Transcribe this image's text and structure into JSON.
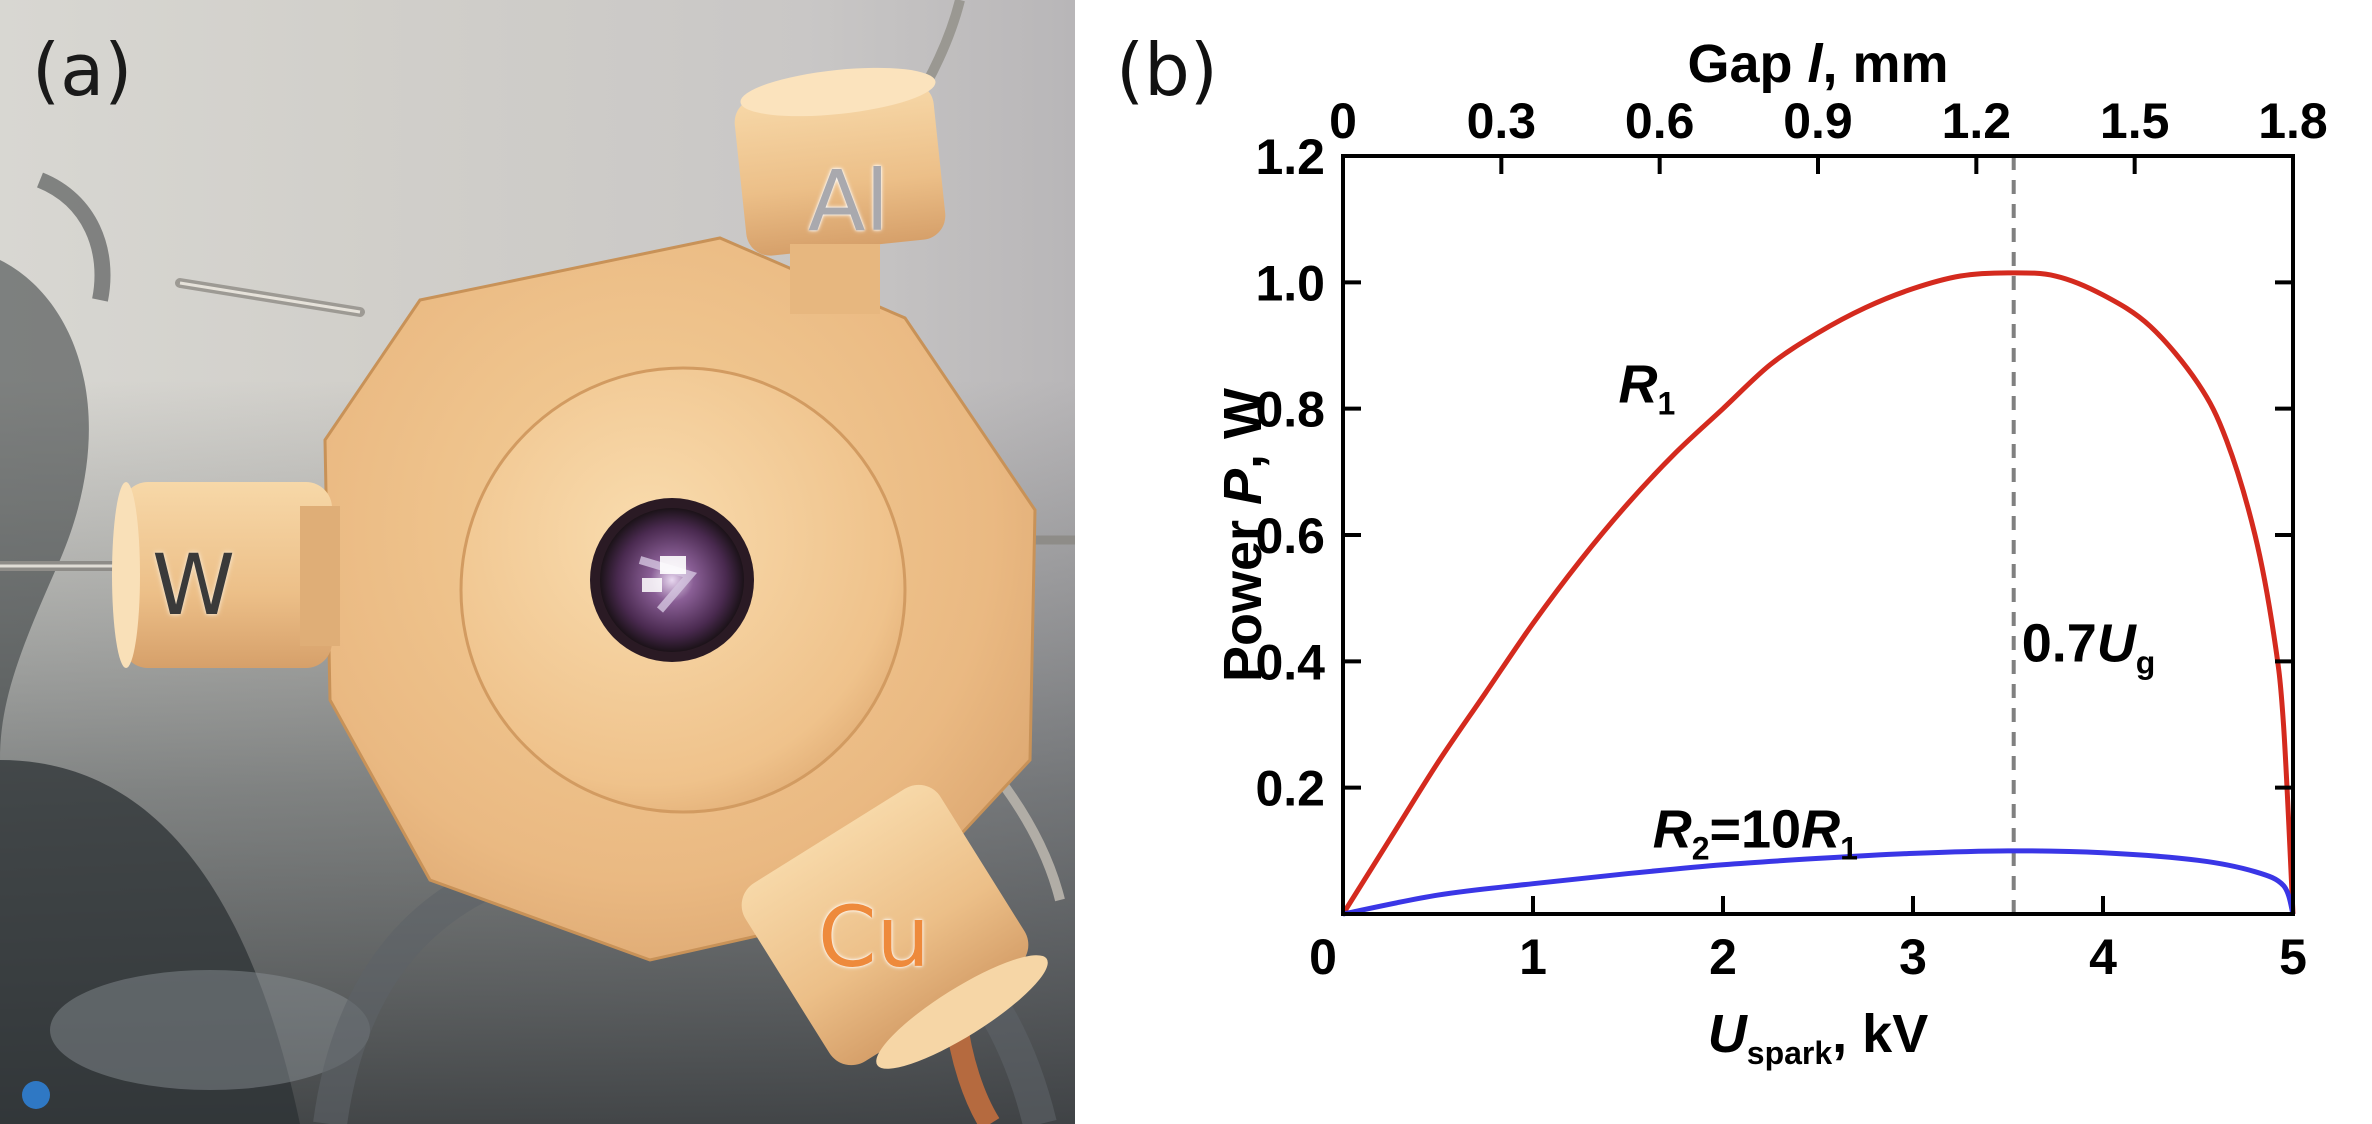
{
  "panels": {
    "a_label": "(a)",
    "b_label": "(b)"
  },
  "photo": {
    "electrodes": [
      {
        "id": "w",
        "label": "W"
      },
      {
        "id": "al",
        "label": "Al"
      },
      {
        "id": "cu",
        "label": "Cu"
      }
    ]
  },
  "chart_data": {
    "type": "line",
    "title": "",
    "xlabel": {
      "main": "U",
      "sub": "spark",
      "tail": ", kV"
    },
    "ylabel": {
      "pre": "Power ",
      "italic": "P",
      "tail": ", W"
    },
    "x2label": {
      "pre": "Gap ",
      "italic": "l",
      "tail": ", mm"
    },
    "xlim": [
      0,
      5
    ],
    "ylim": [
      0,
      1.2
    ],
    "x2lim": [
      0,
      1.8
    ],
    "xticks": [
      "0",
      "1",
      "2",
      "3",
      "4",
      "5"
    ],
    "yticks": [
      "0.2",
      "0.4",
      "0.6",
      "0.8",
      "1.0",
      "1.2"
    ],
    "x2ticks": [
      "0",
      "0.3",
      "0.6",
      "0.9",
      "1.2",
      "1.5",
      "1.8"
    ],
    "grid": false,
    "series": [
      {
        "name": "R1",
        "color": "#d42a1e",
        "x": [
          0,
          0.25,
          0.5,
          0.75,
          1.0,
          1.25,
          1.5,
          1.75,
          2.0,
          2.25,
          2.5,
          2.75,
          3.0,
          3.25,
          3.5,
          3.75,
          4.0,
          4.25,
          4.5,
          4.65,
          4.8,
          4.9,
          4.95,
          5.0
        ],
        "y": [
          0,
          0.12,
          0.24,
          0.35,
          0.46,
          0.56,
          0.65,
          0.73,
          0.8,
          0.87,
          0.92,
          0.96,
          0.99,
          1.01,
          1.015,
          1.01,
          0.98,
          0.93,
          0.84,
          0.75,
          0.6,
          0.44,
          0.3,
          0.0
        ]
      },
      {
        "name": "R2=10R1",
        "color": "#3a36e6",
        "x": [
          0,
          0.5,
          1.0,
          1.5,
          2.0,
          2.5,
          3.0,
          3.5,
          4.0,
          4.5,
          4.8,
          4.95,
          5.0
        ],
        "y": [
          0,
          0.03,
          0.048,
          0.064,
          0.078,
          0.088,
          0.096,
          0.1,
          0.097,
          0.085,
          0.067,
          0.045,
          0.0
        ]
      }
    ],
    "annotations": [
      {
        "text": "R",
        "sub": "1",
        "color": "#d42a1e"
      },
      {
        "text": "R",
        "sub": "2",
        "mid": "=10",
        "text2": "R",
        "sub2": "1",
        "color": "#3a36e6"
      },
      {
        "text": "0.7",
        "italic": "U",
        "sub": "g",
        "color": "#808080",
        "vline_x": 3.53
      }
    ]
  }
}
